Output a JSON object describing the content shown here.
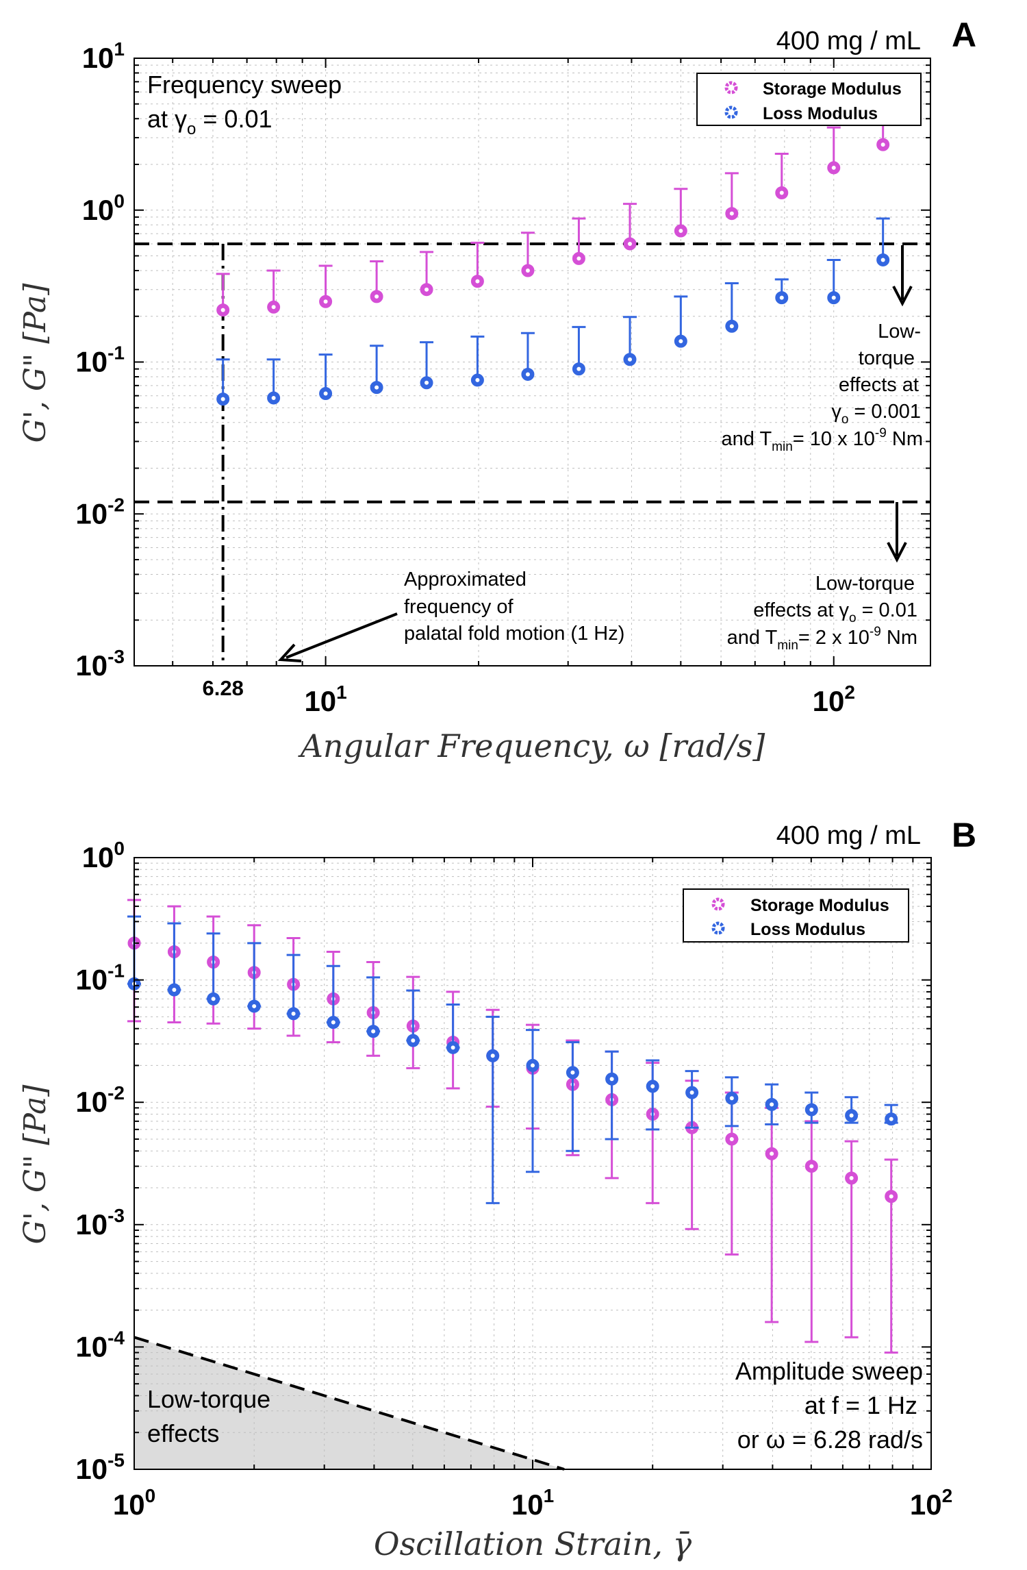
{
  "colors": {
    "storage": "#d54fd6",
    "loss": "#3366e0",
    "grid": "#bfbfbf",
    "shade": "#dcdcdc",
    "axis": "#000000"
  },
  "chart_data": [
    {
      "type": "scatter",
      "panel": "A",
      "corner_label": "400 mg / mL",
      "xscale": "log",
      "yscale": "log",
      "xlim": [
        4.2,
        155
      ],
      "ylim": [
        0.001,
        10
      ],
      "xlabel": "Angular Frequency, ω [rad/s]",
      "ylabel": "G', G\" [Pa]",
      "x_ticks": [
        {
          "value": 10,
          "base": "10",
          "exp": "1"
        },
        {
          "value": 100,
          "base": "10",
          "exp": "2"
        }
      ],
      "y_ticks": [
        {
          "value": 10,
          "base": "10",
          "exp": "1"
        },
        {
          "value": 1,
          "base": "10",
          "exp": "0"
        },
        {
          "value": 0.1,
          "base": "10",
          "exp": "-1"
        },
        {
          "value": 0.01,
          "base": "10",
          "exp": "-2"
        },
        {
          "value": 0.001,
          "base": "10",
          "exp": "-3"
        }
      ],
      "legend": [
        "Storage Modulus",
        "Loss Modulus"
      ],
      "legend_position": "top-right",
      "annotation_top_left": [
        "Frequency sweep",
        "at γ",
        "o",
        "= 0.01"
      ],
      "series": [
        {
          "name": "Storage Modulus",
          "x": [
            6.28,
            7.9,
            10,
            12.6,
            15.8,
            19.9,
            25,
            31.5,
            39.7,
            50,
            63,
            79,
            100,
            125
          ],
          "y": [
            0.22,
            0.23,
            0.25,
            0.27,
            0.3,
            0.34,
            0.4,
            0.48,
            0.6,
            0.73,
            0.95,
            1.3,
            1.9,
            2.7
          ],
          "err_upper": [
            0.38,
            0.4,
            0.43,
            0.46,
            0.53,
            0.61,
            0.71,
            0.88,
            1.1,
            1.38,
            1.75,
            2.35,
            3.5,
            4.0
          ]
        },
        {
          "name": "Loss Modulus",
          "x": [
            6.28,
            7.9,
            10,
            12.6,
            15.8,
            19.9,
            25,
            31.5,
            39.7,
            50,
            63,
            79,
            100,
            125
          ],
          "y": [
            0.057,
            0.058,
            0.062,
            0.068,
            0.073,
            0.076,
            0.083,
            0.09,
            0.104,
            0.137,
            0.172,
            0.265,
            0.265,
            0.47
          ],
          "err_upper": [
            0.104,
            0.104,
            0.112,
            0.128,
            0.135,
            0.147,
            0.155,
            0.17,
            0.198,
            0.27,
            0.33,
            0.35,
            0.47,
            0.88
          ]
        }
      ],
      "reference_lines": [
        {
          "type": "horizontal",
          "y": 0.6,
          "style": "dashed",
          "label": [
            "Low-",
            "torque",
            "effects at",
            "γ",
            "o",
            "= 0.001",
            "and T",
            "min",
            "= 10 x 10",
            "-9",
            " Nm"
          ]
        },
        {
          "type": "horizontal",
          "y": 0.012,
          "style": "dashed",
          "label": [
            "Low-torque",
            "effects at γ",
            "o",
            "= 0.01",
            "and T",
            "min",
            "= 2 x 10",
            "-9",
            " Nm"
          ]
        },
        {
          "type": "vertical",
          "x": 6.28,
          "style": "dash-dot",
          "label": "6.28"
        }
      ],
      "arrow_annotation": [
        "Approximated",
        "frequency of",
        "palatal fold motion (1 Hz)"
      ]
    },
    {
      "type": "scatter",
      "panel": "B",
      "corner_label": "400 mg / mL",
      "xscale": "log",
      "yscale": "log",
      "xlim": [
        1,
        100
      ],
      "ylim": [
        1e-05,
        1
      ],
      "xlabel": "Oscillation Strain, γ̄",
      "ylabel": "G', G\" [Pa]",
      "x_ticks": [
        {
          "value": 1,
          "base": "10",
          "exp": "0"
        },
        {
          "value": 10,
          "base": "10",
          "exp": "1"
        },
        {
          "value": 100,
          "base": "10",
          "exp": "2"
        }
      ],
      "y_ticks": [
        {
          "value": 1,
          "base": "10",
          "exp": "0"
        },
        {
          "value": 0.1,
          "base": "10",
          "exp": "-1"
        },
        {
          "value": 0.01,
          "base": "10",
          "exp": "-2"
        },
        {
          "value": 0.001,
          "base": "10",
          "exp": "-3"
        },
        {
          "value": 0.0001,
          "base": "10",
          "exp": "-4"
        },
        {
          "value": 1e-05,
          "base": "10",
          "exp": "-5"
        }
      ],
      "legend": [
        "Storage Modulus",
        "Loss Modulus"
      ],
      "legend_position": "top-right",
      "annotation_bottom_right": [
        "Amplitude sweep",
        "at f = 1 Hz",
        "or ω = 6.28 rad/s"
      ],
      "shaded_region_label": [
        "Low-torque",
        "effects"
      ],
      "shaded_region_line": {
        "x": [
          1,
          12
        ],
        "y": [
          0.00012,
          1e-05
        ]
      },
      "series": [
        {
          "name": "Storage Modulus",
          "x": [
            1.0,
            1.26,
            1.58,
            2.0,
            2.51,
            3.16,
            3.98,
            5.01,
            6.31,
            7.94,
            10.0,
            12.6,
            15.8,
            20.0,
            25.1,
            31.6,
            39.8,
            50.1,
            63.1,
            79.4
          ],
          "y": [
            0.2,
            0.17,
            0.14,
            0.115,
            0.092,
            0.07,
            0.054,
            0.042,
            0.031,
            0.024,
            0.019,
            0.014,
            0.0105,
            0.008,
            0.0062,
            0.005,
            0.0038,
            0.003,
            0.0024,
            0.0017
          ],
          "err_lower": [
            0.046,
            0.045,
            0.044,
            0.04,
            0.035,
            0.031,
            0.024,
            0.019,
            0.013,
            0.0092,
            0.0061,
            0.0037,
            0.0024,
            0.0015,
            0.00092,
            0.00057,
            0.00016,
            0.00011,
            0.00012,
            9e-05
          ],
          "err_upper": [
            0.45,
            0.4,
            0.33,
            0.28,
            0.22,
            0.17,
            0.14,
            0.106,
            0.08,
            0.057,
            0.043,
            0.032,
            0.026,
            0.021,
            0.015,
            0.012,
            0.009,
            0.007,
            0.0048,
            0.0034
          ]
        },
        {
          "name": "Loss Modulus",
          "x": [
            1.0,
            1.26,
            1.58,
            2.0,
            2.51,
            3.16,
            3.98,
            5.01,
            6.31,
            7.94,
            10.0,
            12.6,
            15.8,
            20.0,
            25.1,
            31.6,
            39.8,
            50.1,
            63.1,
            79.4
          ],
          "y": [
            0.093,
            0.083,
            0.07,
            0.061,
            0.053,
            0.045,
            0.038,
            0.032,
            0.028,
            0.024,
            0.02,
            0.0175,
            0.0155,
            0.0135,
            0.012,
            0.0108,
            0.0096,
            0.0087,
            0.0078,
            0.0073
          ],
          "err_lower": [
            0.093,
            0.083,
            0.07,
            0.061,
            0.053,
            0.045,
            0.038,
            0.032,
            0.028,
            0.0015,
            0.0027,
            0.004,
            0.005,
            0.006,
            0.0062,
            0.0064,
            0.0066,
            0.0068,
            0.0068,
            0.0068
          ],
          "err_upper": [
            0.33,
            0.29,
            0.24,
            0.2,
            0.16,
            0.13,
            0.105,
            0.082,
            0.063,
            0.05,
            0.039,
            0.031,
            0.026,
            0.022,
            0.018,
            0.016,
            0.014,
            0.012,
            0.011,
            0.0095
          ]
        }
      ]
    }
  ]
}
